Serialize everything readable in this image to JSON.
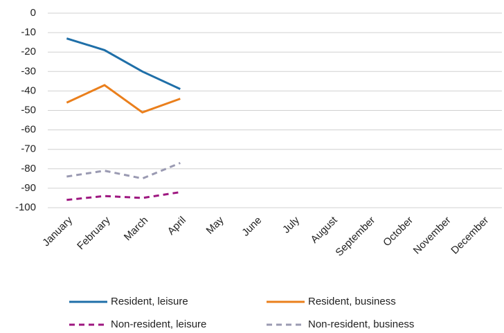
{
  "chart_data": {
    "type": "line",
    "categories": [
      "January",
      "February",
      "March",
      "April",
      "May",
      "June",
      "July",
      "August",
      "September",
      "October",
      "November",
      "December"
    ],
    "series": [
      {
        "name": "Resident, leisure",
        "color": "#1f6fa8",
        "line_style": "solid",
        "values": [
          -13,
          -19,
          -30,
          -39,
          null,
          null,
          null,
          null,
          null,
          null,
          null,
          null
        ]
      },
      {
        "name": "Resident, business",
        "color": "#ea7f1c",
        "line_style": "solid",
        "values": [
          -46,
          -37,
          -51,
          -44,
          null,
          null,
          null,
          null,
          null,
          null,
          null,
          null
        ]
      },
      {
        "name": "Non-resident, leisure",
        "color": "#9e1780",
        "line_style": "dashed",
        "values": [
          -96,
          -94,
          -95,
          -92,
          null,
          null,
          null,
          null,
          null,
          null,
          null,
          null
        ]
      },
      {
        "name": "Non-resident, business",
        "color": "#9a9ab2",
        "line_style": "dashed",
        "values": [
          -84,
          -81,
          -85,
          -77,
          null,
          null,
          null,
          null,
          null,
          null,
          null,
          null
        ]
      }
    ],
    "ylim": [
      -100,
      0
    ],
    "yticks": [
      0,
      -10,
      -20,
      -30,
      -40,
      -50,
      -60,
      -70,
      -80,
      -90,
      -100
    ],
    "grid": true
  }
}
